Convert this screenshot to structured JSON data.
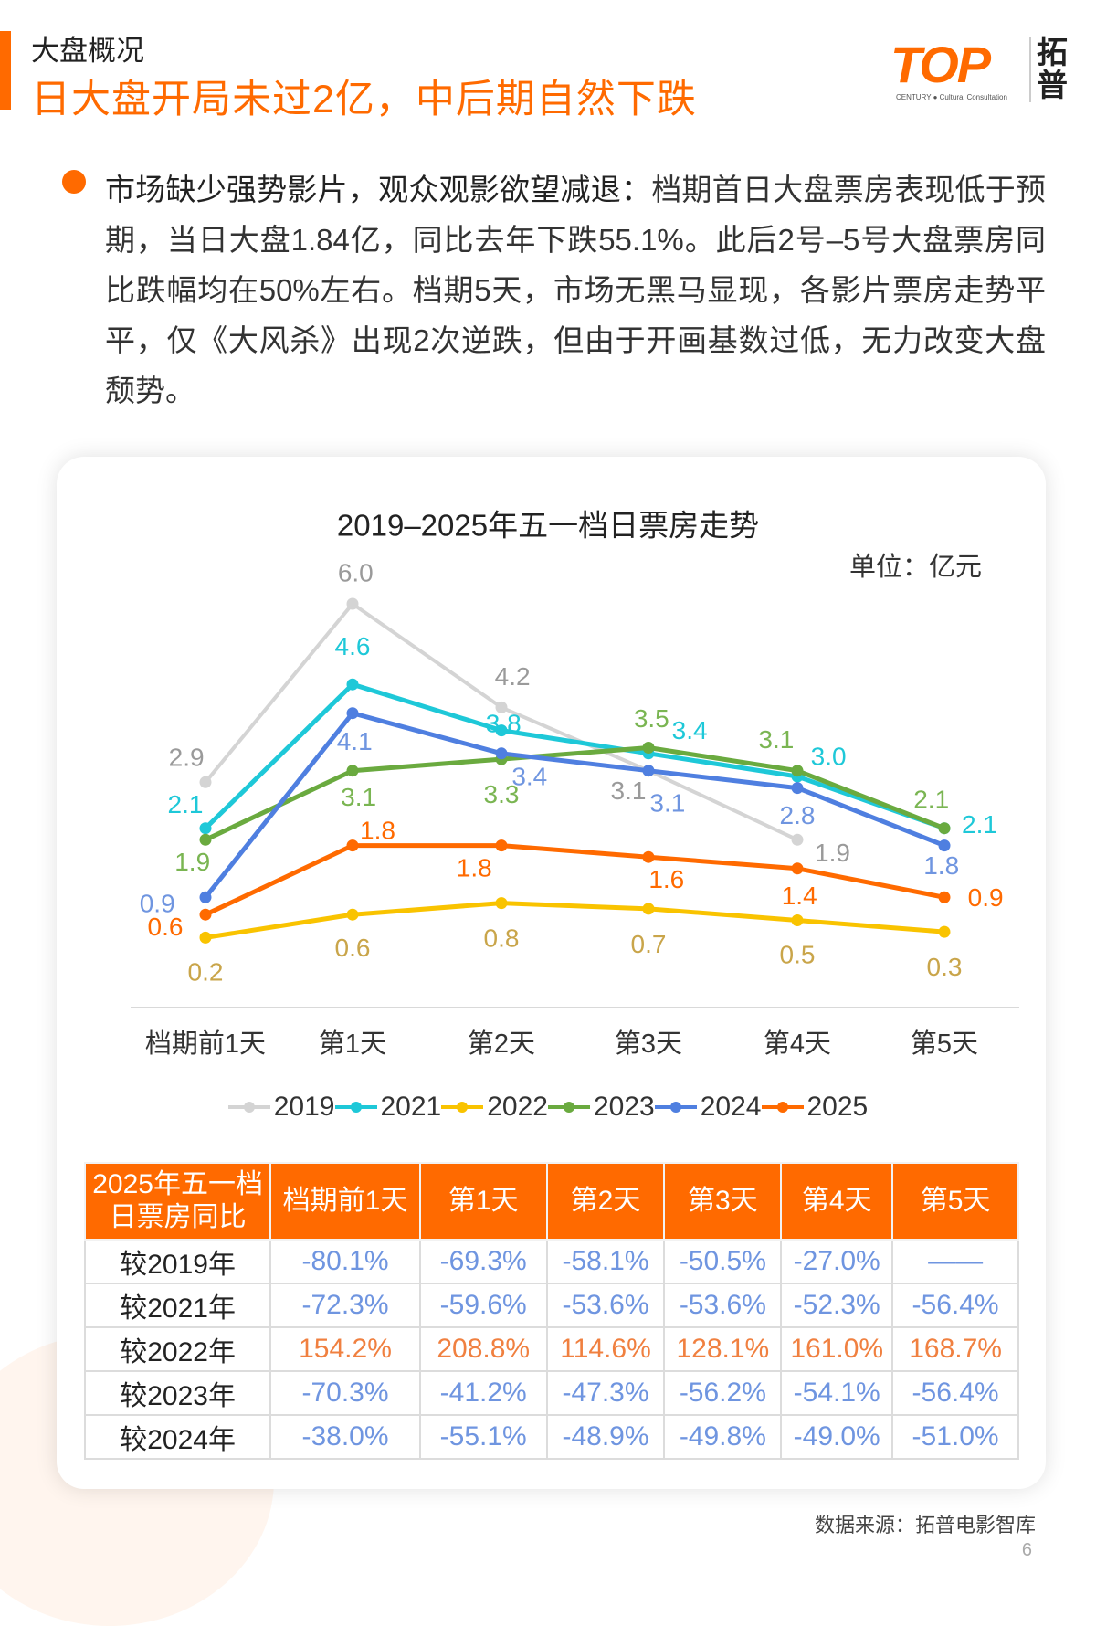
{
  "header": {
    "section": "大盘概况",
    "headline": "日大盘开局未过2亿，中后期自然下跌"
  },
  "logo": {
    "mark": "TOP",
    "sub": "CENTURY ● Cultural Consultation",
    "cn": "拓普"
  },
  "bullet": {
    "lead": "市场缺少强势影片，观众观影欲望减退：",
    "body": "档期首日大盘票房表现低于预期，当日大盘1.84亿，同比去年下跌55.1%。此后2号–5号大盘票房同比跌幅均在50%左右。档期5天，市场无黑马显现，各影片票房走势平平，仅《大风杀》出现2次逆跌，但由于开画基数过低，无力改变大盘颓势。"
  },
  "chart_data": {
    "type": "line",
    "title": "2019–2025年五一档日票房走势",
    "unit": "单位：亿元",
    "categories": [
      "档期前1天",
      "第1天",
      "第2天",
      "第3天",
      "第4天",
      "第5天"
    ],
    "ylim": [
      0,
      6.0
    ],
    "grid": false,
    "legend_position": "bottom",
    "series": [
      {
        "name": "2019",
        "color": "#d4d4d4",
        "label_color": "#9a9a9a",
        "values": [
          2.9,
          6.0,
          4.2,
          3.1,
          1.9,
          null
        ]
      },
      {
        "name": "2021",
        "color": "#1ec8d8",
        "label_color": "#1ec8d8",
        "values": [
          2.1,
          4.6,
          3.8,
          3.4,
          3.0,
          2.1
        ]
      },
      {
        "name": "2022",
        "color": "#f9c300",
        "label_color": "#c9a54a",
        "values": [
          0.2,
          0.6,
          0.8,
          0.7,
          0.5,
          0.3
        ]
      },
      {
        "name": "2023",
        "color": "#6aaa3f",
        "label_color": "#7ab552",
        "values": [
          1.9,
          3.1,
          3.3,
          3.5,
          3.1,
          2.1
        ]
      },
      {
        "name": "2024",
        "color": "#4f7fe0",
        "label_color": "#6f95e0",
        "values": [
          0.9,
          4.1,
          3.4,
          3.1,
          2.8,
          1.8
        ]
      },
      {
        "name": "2025",
        "color": "#ff6a00",
        "label_color": "#ff6a00",
        "values": [
          0.6,
          1.8,
          1.8,
          1.6,
          1.4,
          0.9
        ]
      }
    ]
  },
  "table": {
    "corner": [
      "2025年五一档",
      "日票房同比"
    ],
    "headers": [
      "档期前1天",
      "第1天",
      "第2天",
      "第3天",
      "第4天",
      "第5天"
    ],
    "rows": [
      {
        "label": "较2019年",
        "cells": [
          "-80.1%",
          "-69.3%",
          "-58.1%",
          "-50.5%",
          "-27.0%",
          "——"
        ]
      },
      {
        "label": "较2021年",
        "cells": [
          "-72.3%",
          "-59.6%",
          "-53.6%",
          "-53.6%",
          "-52.3%",
          "-56.4%"
        ]
      },
      {
        "label": "较2022年",
        "cells": [
          "154.2%",
          "208.8%",
          "114.6%",
          "128.1%",
          "161.0%",
          "168.7%"
        ]
      },
      {
        "label": "较2023年",
        "cells": [
          "-70.3%",
          "-41.2%",
          "-47.3%",
          "-56.2%",
          "-54.1%",
          "-56.4%"
        ]
      },
      {
        "label": "较2024年",
        "cells": [
          "-38.0%",
          "-55.1%",
          "-48.9%",
          "-49.8%",
          "-49.0%",
          "-51.0%"
        ]
      }
    ]
  },
  "footer": {
    "source": "数据来源：拓普电影智库",
    "page": "6"
  }
}
